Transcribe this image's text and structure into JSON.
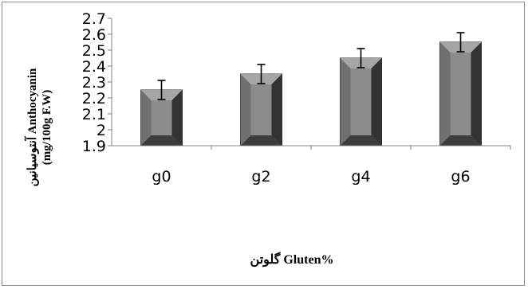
{
  "chart_data": {
    "type": "bar",
    "categories": [
      "g0",
      "g2",
      "g4",
      "g6"
    ],
    "values": [
      2.25,
      2.35,
      2.45,
      2.55
    ],
    "error": [
      0.06,
      0.06,
      0.06,
      0.06
    ],
    "ylim": [
      1.9,
      2.7
    ],
    "yticks": [
      "1.9",
      "2",
      "2.1",
      "2.2",
      "2.3",
      "2.4",
      "2.5",
      "2.6",
      "2.7"
    ],
    "ylabel_line1": "آنتوسیانین Anthocyanin",
    "ylabel_line2": "(mg/100g F.W)",
    "xlabel": "گلوتن Gluten%",
    "grid": false,
    "legend": "none",
    "colors": {
      "bar_face": "#666666",
      "bar_inner": "#8c8c8c",
      "bar_dark": "#333333",
      "bar_light": "#a6a6a6",
      "axis": "#808080"
    }
  }
}
